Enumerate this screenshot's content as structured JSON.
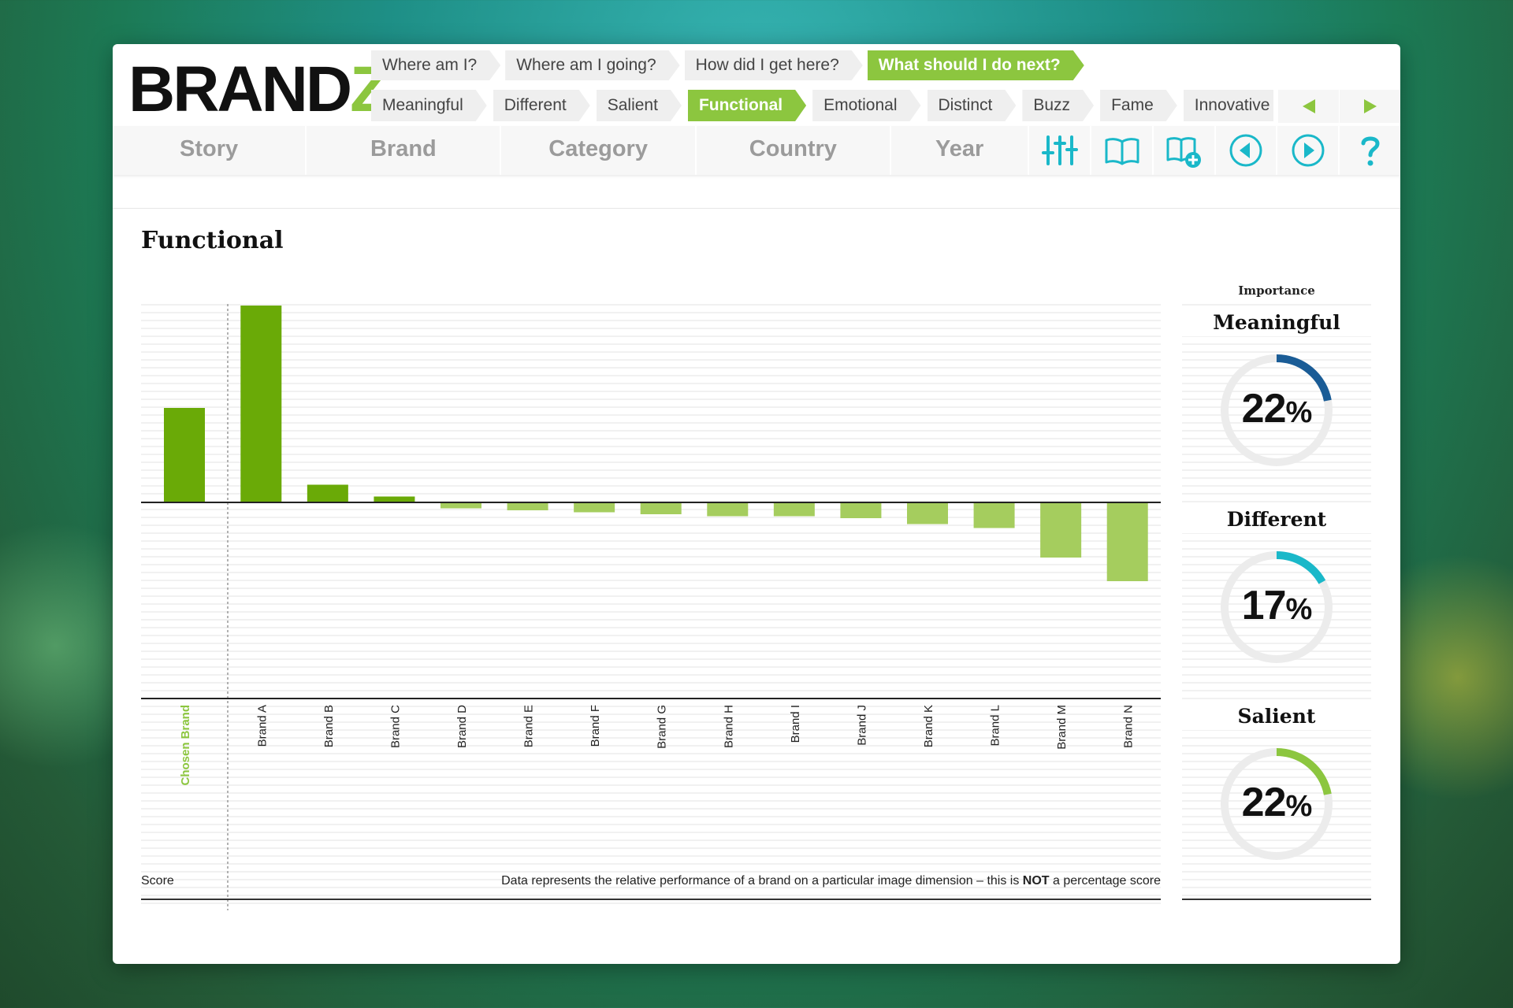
{
  "app": {
    "logo_main": "BRAND",
    "logo_accent": "Z"
  },
  "questions": [
    {
      "label": "Where am I?",
      "active": false
    },
    {
      "label": "Where am I going?",
      "active": false
    },
    {
      "label": "How did I get here?",
      "active": false
    },
    {
      "label": "What should I do next?",
      "active": true
    }
  ],
  "dimensions": [
    {
      "label": "Meaningful",
      "active": false
    },
    {
      "label": "Different",
      "active": false
    },
    {
      "label": "Salient",
      "active": false
    },
    {
      "label": "Functional",
      "active": true
    },
    {
      "label": "Emotional",
      "active": false
    },
    {
      "label": "Distinct",
      "active": false
    },
    {
      "label": "Buzz",
      "active": false
    },
    {
      "label": "Fame",
      "active": false
    },
    {
      "label": "Innovative",
      "active": false
    }
  ],
  "nav": {
    "tabs": [
      "Story",
      "Brand",
      "Category",
      "Country",
      "Year"
    ],
    "icons": [
      "filter-sliders-icon",
      "book-icon",
      "book-add-icon",
      "previous-icon",
      "next-icon",
      "help-icon"
    ]
  },
  "colors": {
    "accent": "#8cc63f",
    "bar_positive": "#6aaa07",
    "bar_negative": "#a5cd5e",
    "teal": "#1ab8c9",
    "navy": "#1a5c96"
  },
  "section": {
    "title": "Functional"
  },
  "chart_data": {
    "type": "bar",
    "categories": [
      "Chosen Brand",
      "Brand A",
      "Brand B",
      "Brand C",
      "Brand D",
      "Brand E",
      "Brand F",
      "Brand G",
      "Brand H",
      "Brand I",
      "Brand J",
      "Brand K",
      "Brand L",
      "Brand M",
      "Brand N"
    ],
    "values": [
      48,
      100,
      9,
      3,
      -3,
      -4,
      -5,
      -6,
      -7,
      -7,
      -8,
      -11,
      -13,
      -28,
      -40
    ],
    "highlight_category": "Chosen Brand",
    "ylim": [
      -100,
      100
    ],
    "grid": true
  },
  "footer": {
    "score_label": "Score",
    "note_before": "Data represents the relative performance of a brand on a particular image dimension – this is ",
    "note_bold": "NOT",
    "note_after": " a percentage score"
  },
  "importance": {
    "heading": "Importance",
    "items": [
      {
        "label": "Meaningful",
        "value": 22,
        "value_text": "22",
        "unit": "%",
        "color": "#1a5c96"
      },
      {
        "label": "Different",
        "value": 17,
        "value_text": "17",
        "unit": "%",
        "color": "#1ab8c9"
      },
      {
        "label": "Salient",
        "value": 22,
        "value_text": "22",
        "unit": "%",
        "color": "#8cc63f"
      }
    ]
  }
}
